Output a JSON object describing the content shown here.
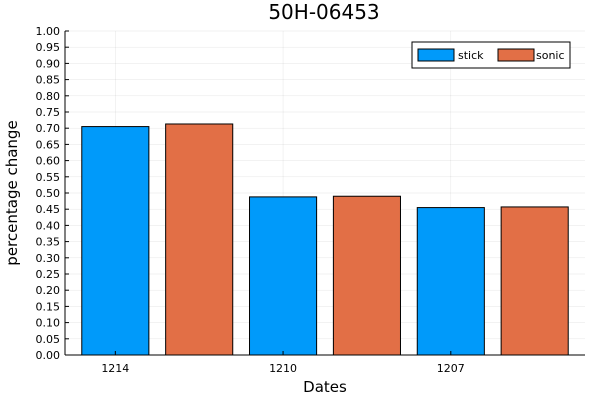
{
  "chart_data": {
    "type": "bar",
    "title": "50H-06453",
    "xlabel": "Dates",
    "ylabel": "percentage change",
    "ylim": [
      0,
      1.0
    ],
    "y_ticks": [
      "0.00",
      "0.05",
      "0.10",
      "0.15",
      "0.20",
      "0.25",
      "0.30",
      "0.35",
      "0.40",
      "0.45",
      "0.50",
      "0.55",
      "0.60",
      "0.65",
      "0.70",
      "0.75",
      "0.80",
      "0.85",
      "0.90",
      "0.95",
      "1.00"
    ],
    "categories": [
      "1214",
      "1210",
      "1207"
    ],
    "series": [
      {
        "name": "stick",
        "color": "#009AFA",
        "values": [
          0.705,
          0.488,
          0.455
        ]
      },
      {
        "name": "sonic",
        "color": "#E26F46",
        "values": [
          0.713,
          0.49,
          0.457
        ]
      }
    ],
    "grid": true,
    "legend_position": "top-right"
  }
}
